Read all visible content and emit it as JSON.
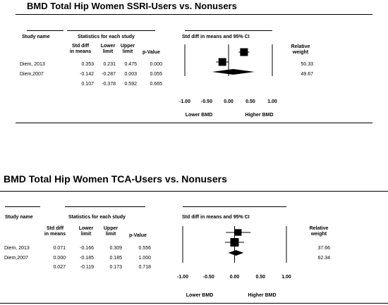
{
  "chart_data": [
    {
      "type": "forest",
      "title": "BMD Total Hip Women SSRI-Users vs. Nonusers",
      "headers": {
        "study_name": "Study name",
        "stats_group": "Statistics for each study",
        "ci_group": "Std diff in means and 95% CI",
        "std_diff": [
          "Std diff",
          "in means"
        ],
        "lower": [
          "Lower",
          "limit"
        ],
        "upper": [
          "Upper",
          "limit"
        ],
        "pvalue": "p-Value",
        "weight": [
          "Relative",
          "weight"
        ]
      },
      "studies": [
        {
          "name": "Diem, 2013",
          "std_diff": "0.353",
          "lower": "0.231",
          "upper": "0.475",
          "p": "0.000",
          "weight": "50.33",
          "est": 0.353,
          "lo": 0.231,
          "hi": 0.475,
          "w": 50.33
        },
        {
          "name": "Diem,2007",
          "std_diff": "-0.142",
          "lower": "-0.287",
          "upper": "0.003",
          "p": "0.055",
          "weight": "49.67",
          "est": -0.142,
          "lo": -0.287,
          "hi": 0.003,
          "w": 49.67
        }
      ],
      "summary": {
        "std_diff": "0.107",
        "lower": "-0.378",
        "upper": "0.592",
        "p": "0.665",
        "est": 0.107,
        "lo": -0.378,
        "hi": 0.592
      },
      "x_ticks": [
        "-1.00",
        "-0.50",
        "0.00",
        "0.50",
        "1.00"
      ],
      "xlim": [
        -1,
        1
      ],
      "favours_left": "Lower BMD",
      "favours_right": "Higher BMD"
    },
    {
      "type": "forest",
      "title": "BMD Total Hip Women TCA-Users vs. Nonusers",
      "headers": {
        "study_name": "Study name",
        "stats_group": "Statistics for each study",
        "ci_group": "Std diff in means and 95% CI",
        "std_diff": [
          "Std diff",
          "in means"
        ],
        "lower": [
          "Lower",
          "limit"
        ],
        "upper": [
          "Upper",
          "limit"
        ],
        "pvalue": "p-Value",
        "weight": [
          "Relative",
          "weight"
        ]
      },
      "studies": [
        {
          "name": "Diem, 2013",
          "std_diff": "0.071",
          "lower": "-0.166",
          "upper": "0.309",
          "p": "0.556",
          "weight": "37.66",
          "est": 0.071,
          "lo": -0.166,
          "hi": 0.309,
          "w": 37.66
        },
        {
          "name": "Diem,2007",
          "std_diff": "0.000",
          "lower": "-0.185",
          "upper": "0.185",
          "p": "1.000",
          "weight": "62.34",
          "est": 0.0,
          "lo": -0.185,
          "hi": 0.185,
          "w": 62.34
        }
      ],
      "summary": {
        "std_diff": "0.027",
        "lower": "-0.119",
        "upper": "0.173",
        "p": "0.718",
        "est": 0.027,
        "lo": -0.119,
        "hi": 0.173
      },
      "x_ticks": [
        "-1.00",
        "-0.50",
        "0.00",
        "0.50",
        "1.00"
      ],
      "xlim": [
        -1,
        1
      ],
      "favours_left": "Lower BMD",
      "favours_right": "Higher BMD"
    }
  ]
}
